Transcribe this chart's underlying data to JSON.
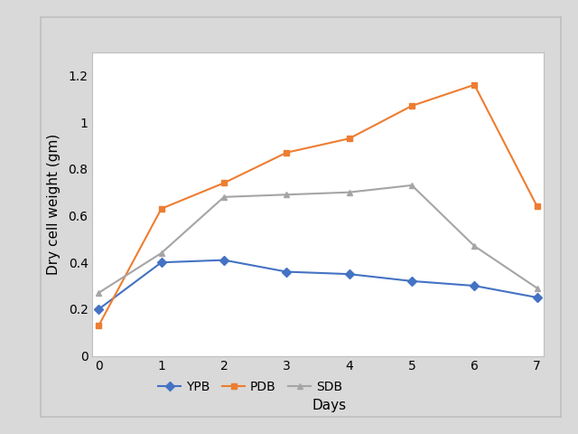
{
  "days": [
    0,
    1,
    2,
    3,
    4,
    5,
    6,
    7
  ],
  "YPB": [
    0.2,
    0.4,
    0.41,
    0.36,
    0.35,
    0.32,
    0.3,
    0.25
  ],
  "PDB": [
    0.13,
    0.63,
    0.74,
    0.87,
    0.93,
    1.07,
    1.16,
    0.64
  ],
  "SDB": [
    0.27,
    0.44,
    0.68,
    0.69,
    0.7,
    0.73,
    0.47,
    0.29
  ],
  "YPB_color": "#4472C4",
  "PDB_color": "#ED7D31",
  "SDB_color": "#A5A5A5",
  "YPB_marker": "D",
  "PDB_marker": "s",
  "SDB_marker": "^",
  "xlabel": "Days",
  "ylabel": "Dry cell weight (gm)",
  "ylim": [
    0,
    1.3
  ],
  "yticks": [
    0,
    0.2,
    0.4,
    0.6,
    0.8,
    1.0,
    1.2
  ],
  "ytick_labels": [
    "0",
    "0.2",
    "0.4",
    "0.6",
    "0.8",
    "1",
    "1.2"
  ],
  "xticks": [
    0,
    1,
    2,
    3,
    4,
    5,
    6,
    7
  ],
  "legend_labels": [
    "YPB",
    "PDB",
    "SDB"
  ],
  "background_color": "#f2f2f2",
  "plot_bg_color": "#ffffff",
  "outer_box_color": "#bfbfbf",
  "marker_size": 5,
  "line_width": 1.5,
  "font_size": 10,
  "label_font_size": 11
}
